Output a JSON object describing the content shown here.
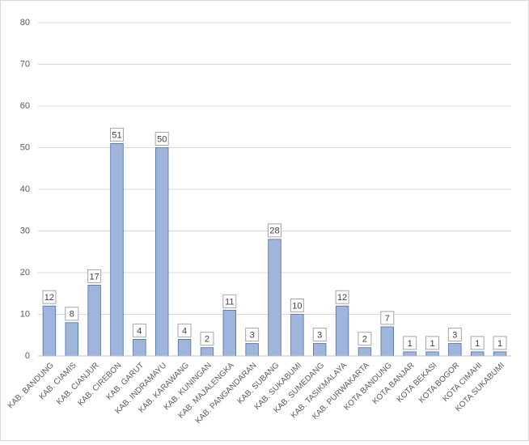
{
  "chart_data": {
    "type": "bar",
    "categories": [
      "KAB. BANDUNG",
      "KAB. CIAMIS",
      "KAB. CIANJUR",
      "KAB. CIREBON",
      "KAB. GARUT",
      "KAB. INDRAMAYU",
      "KAB. KARAWANG",
      "KAB. KUNINGAN",
      "KAB. MAJALENGKA",
      "KAB. PANGANDARAN",
      "KAB. SUBANG",
      "KAB. SUKABUMI",
      "KAB. SUMEDANG",
      "KAB. TASIKMALAYA",
      "KAB. PURWAKARTA",
      "KOTA BANDUNG",
      "KOTA BANJAR",
      "KOTA BEKASI",
      "KOTA BOGOR",
      "KOTA CIMAHI",
      "KOTA SUKABUMI"
    ],
    "values": [
      12,
      8,
      17,
      51,
      4,
      50,
      4,
      2,
      11,
      3,
      28,
      10,
      3,
      12,
      2,
      7,
      1,
      1,
      3,
      1,
      1
    ],
    "color": "#9fb5dc",
    "ylim": [
      0,
      80
    ],
    "yticks": [
      0,
      10,
      20,
      30,
      40,
      50,
      60,
      70,
      80
    ],
    "grid": true
  }
}
